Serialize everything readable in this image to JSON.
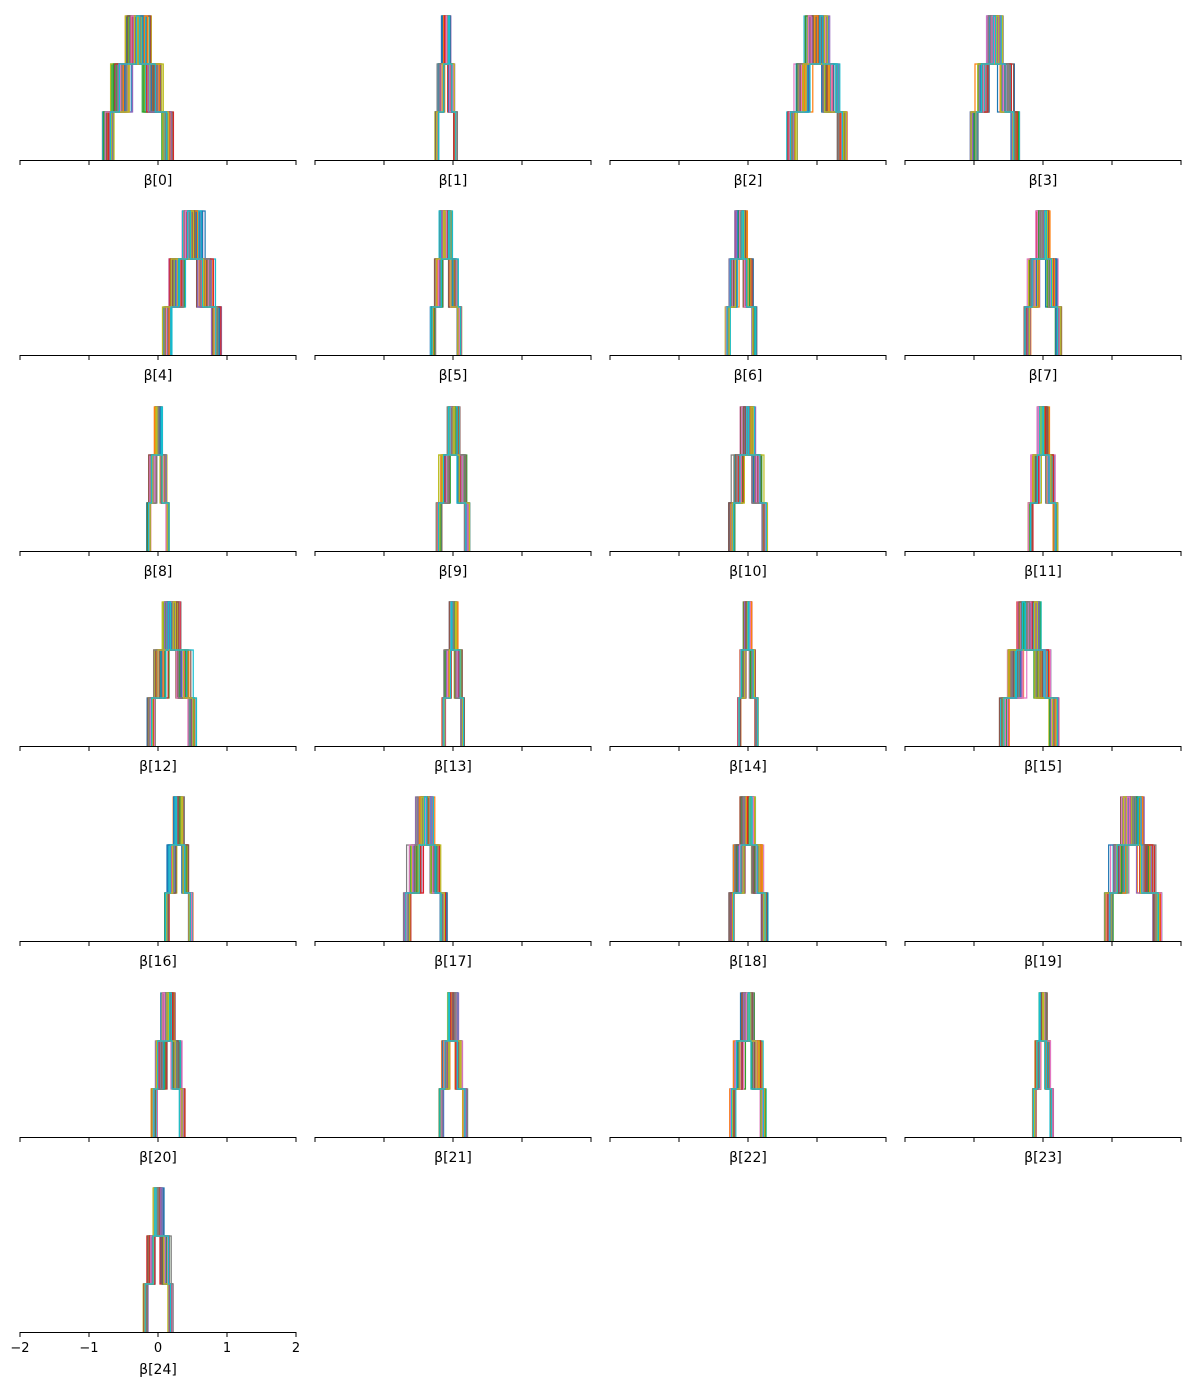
{
  "palette": [
    "#1f77b4",
    "#ff7f0e",
    "#2ca02c",
    "#d62728",
    "#9467bd",
    "#8c564b",
    "#e377c2",
    "#7f7f7f",
    "#bcbd22",
    "#17becf"
  ],
  "chart_data": {
    "type": "histogram-grid",
    "xlim": [
      -2,
      2
    ],
    "x_ticks": [
      -2,
      -1,
      0,
      1,
      2
    ],
    "x_tick_labels": [
      "−2",
      "−1",
      "0",
      "1",
      "2"
    ],
    "x_tick_labels_shown_on": "β[24]",
    "grid": false,
    "y_axis_visible": false,
    "layout": {
      "rows": 7,
      "cols": 4
    },
    "panels": [
      {
        "label": "β[0]",
        "center": -0.3,
        "spread": 0.95
      },
      {
        "label": "β[1]",
        "center": -0.1,
        "spread": 0.3
      },
      {
        "label": "β[2]",
        "center": 1.0,
        "spread": 0.8
      },
      {
        "label": "β[3]",
        "center": -0.7,
        "spread": 0.65
      },
      {
        "label": "β[4]",
        "center": 0.5,
        "spread": 0.78
      },
      {
        "label": "β[5]",
        "center": -0.1,
        "spread": 0.42
      },
      {
        "label": "β[6]",
        "center": -0.1,
        "spread": 0.42
      },
      {
        "label": "β[7]",
        "center": 0.0,
        "spread": 0.5
      },
      {
        "label": "β[8]",
        "center": 0.0,
        "spread": 0.3
      },
      {
        "label": "β[9]",
        "center": 0.0,
        "spread": 0.45
      },
      {
        "label": "β[10]",
        "center": 0.0,
        "spread": 0.52
      },
      {
        "label": "β[11]",
        "center": 0.0,
        "spread": 0.4
      },
      {
        "label": "β[12]",
        "center": 0.2,
        "spread": 0.65
      },
      {
        "label": "β[13]",
        "center": 0.0,
        "spread": 0.3
      },
      {
        "label": "β[14]",
        "center": 0.0,
        "spread": 0.28
      },
      {
        "label": "β[15]",
        "center": -0.2,
        "spread": 0.78
      },
      {
        "label": "β[16]",
        "center": 0.3,
        "spread": 0.38
      },
      {
        "label": "β[17]",
        "center": -0.4,
        "spread": 0.58
      },
      {
        "label": "β[18]",
        "center": 0.0,
        "spread": 0.52
      },
      {
        "label": "β[19]",
        "center": 1.3,
        "spread": 0.78
      },
      {
        "label": "β[20]",
        "center": 0.15,
        "spread": 0.45
      },
      {
        "label": "β[21]",
        "center": 0.0,
        "spread": 0.38
      },
      {
        "label": "β[22]",
        "center": 0.0,
        "spread": 0.48
      },
      {
        "label": "β[23]",
        "center": 0.0,
        "spread": 0.28
      },
      {
        "label": "β[24]",
        "center": 0.0,
        "spread": 0.4
      }
    ]
  }
}
